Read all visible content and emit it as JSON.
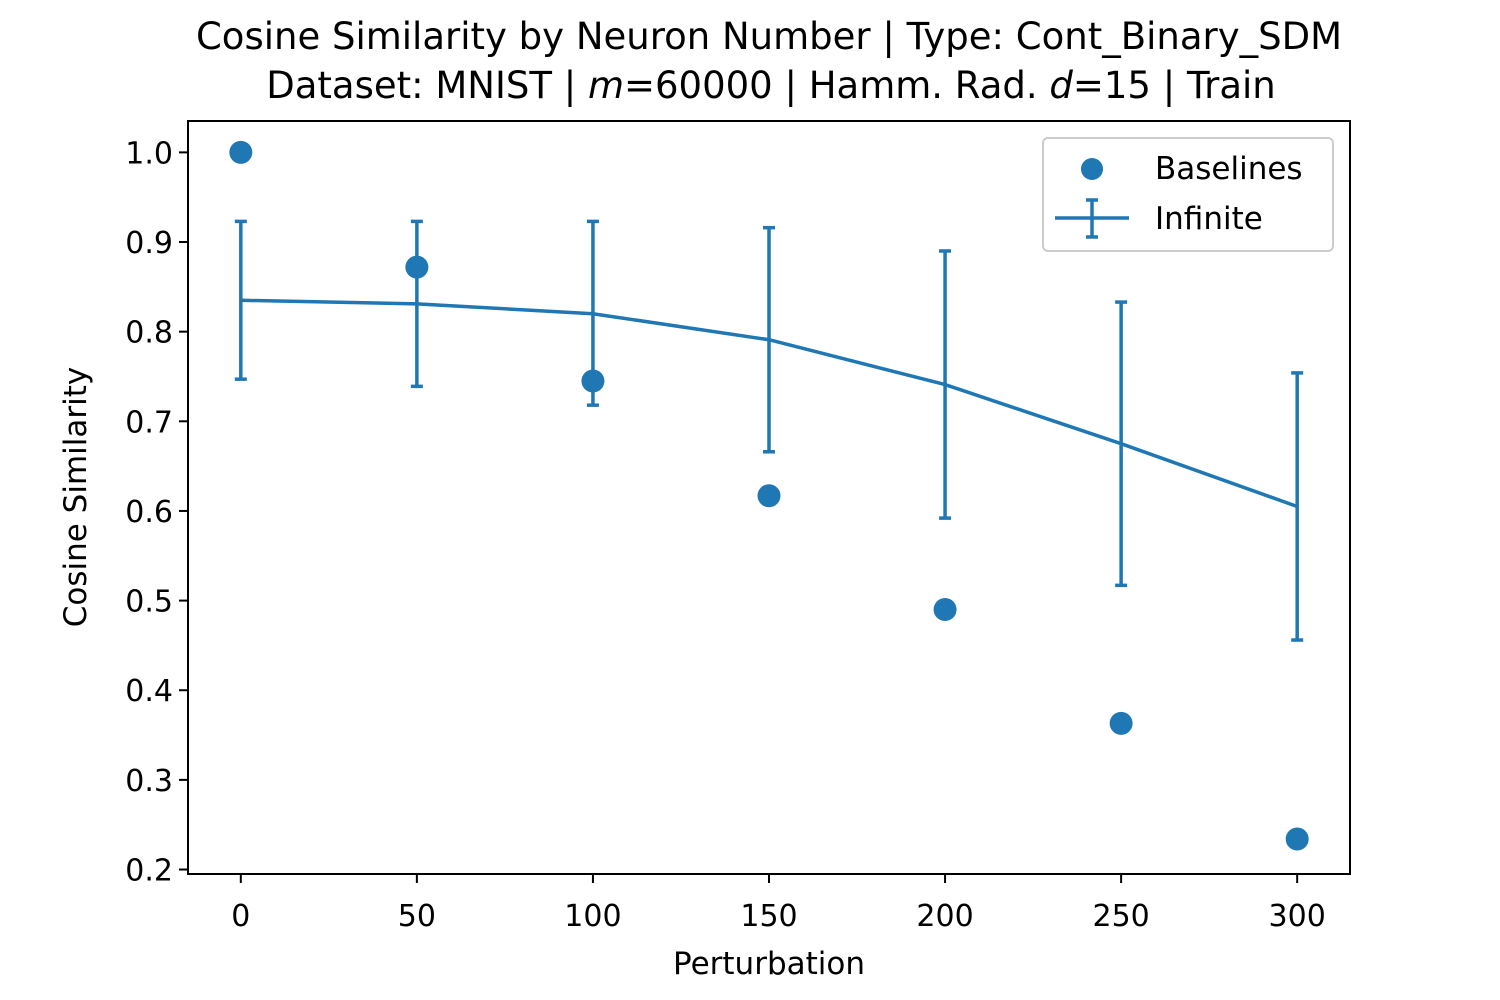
{
  "chart_data": {
    "type": "line",
    "title_line1": "Cosine Similarity by Neuron Number | Type: Cont_Binary_SDM",
    "title_line2_prefix": "Dataset: MNIST | ",
    "title_m_symbol": "m",
    "title_m_value": "=60000 | Hamm. Rad. ",
    "title_d_symbol": "d",
    "title_d_value": "=15 | Train",
    "xlabel": "Perturbation",
    "ylabel": "Cosine Similarity",
    "xlim": [
      -15,
      315
    ],
    "ylim": [
      0.195,
      1.035
    ],
    "xticks": [
      0,
      50,
      100,
      150,
      200,
      250,
      300
    ],
    "xtick_labels": [
      "0",
      "50",
      "100",
      "150",
      "200",
      "250",
      "300"
    ],
    "yticks": [
      0.2,
      0.3,
      0.4,
      0.5,
      0.6,
      0.7,
      0.8,
      0.9,
      1.0
    ],
    "ytick_labels": [
      "0.2",
      "0.3",
      "0.4",
      "0.5",
      "0.6",
      "0.7",
      "0.8",
      "0.9",
      "1.0"
    ],
    "grid": false,
    "legend_position": "top-right",
    "color": "#1f77b4",
    "series": [
      {
        "name": "Baselines",
        "kind": "scatter",
        "x": [
          0,
          50,
          100,
          150,
          200,
          250,
          300
        ],
        "y": [
          1.0,
          0.872,
          0.745,
          0.617,
          0.49,
          0.363,
          0.234
        ]
      },
      {
        "name": "Infinite",
        "kind": "errorbar-line",
        "x": [
          0,
          50,
          100,
          150,
          200,
          250,
          300
        ],
        "y": [
          0.835,
          0.831,
          0.82,
          0.791,
          0.741,
          0.675,
          0.605
        ],
        "y_low": [
          0.747,
          0.739,
          0.718,
          0.666,
          0.592,
          0.517,
          0.456
        ],
        "y_high": [
          0.923,
          0.923,
          0.923,
          0.916,
          0.89,
          0.833,
          0.754
        ]
      }
    ]
  }
}
